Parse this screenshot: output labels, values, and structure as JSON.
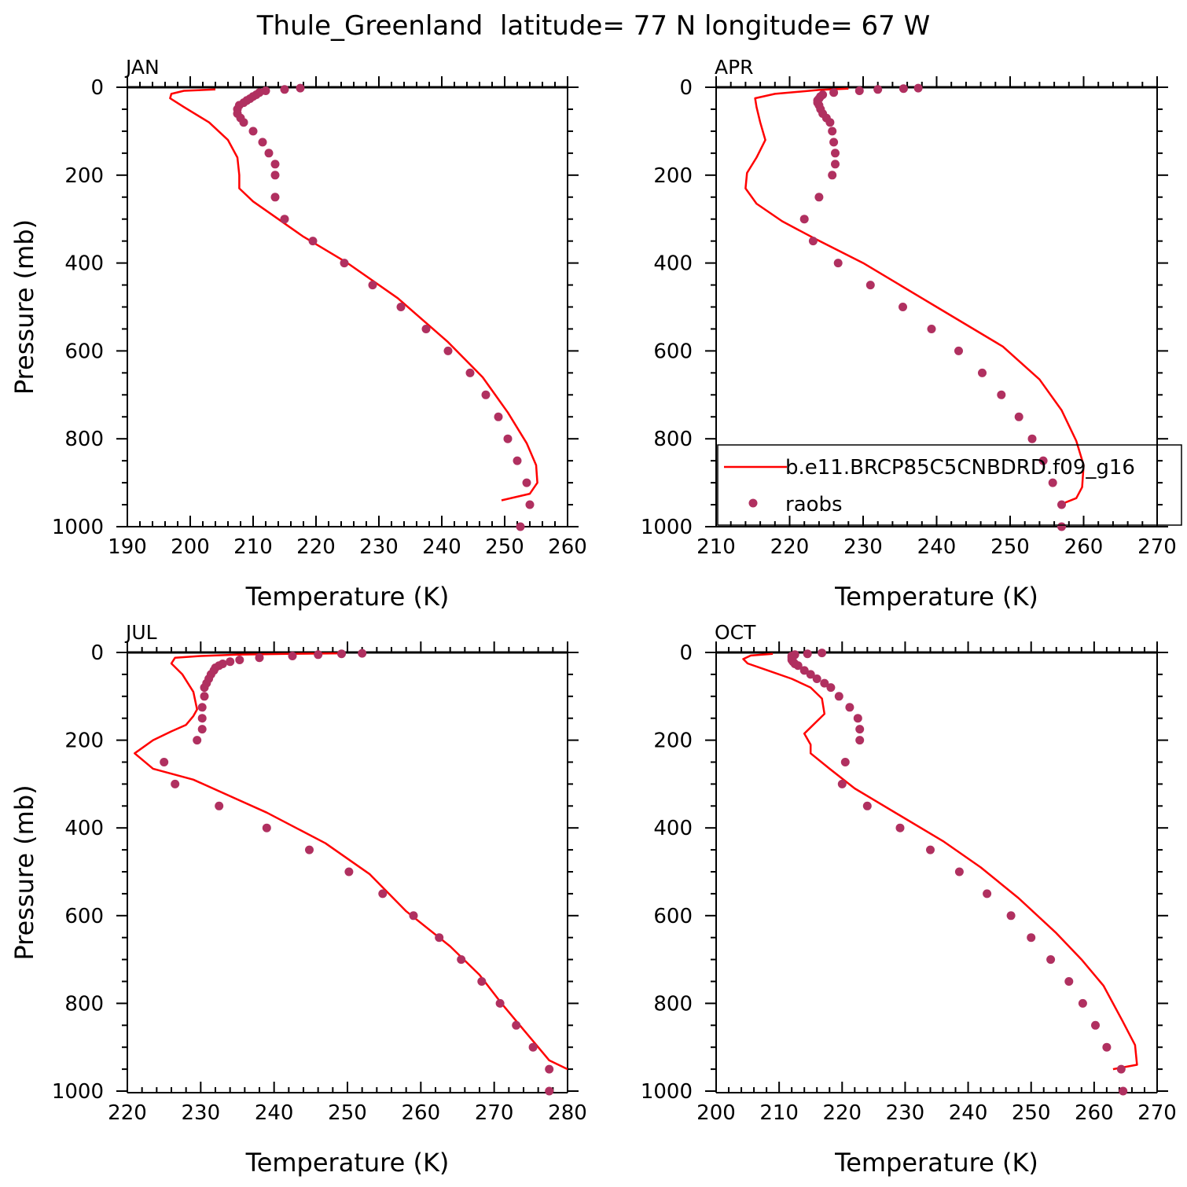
{
  "title": "Thule_Greenland  latitude= 77 N longitude= 67 W",
  "colors": {
    "model": "#ff0000",
    "obs": "#b03060",
    "axis": "#000000"
  },
  "chart_data": [
    {
      "type": "line",
      "panel": "JAN",
      "xlabel": "Temperature (K)",
      "ylabel": "Pressure (mb)",
      "xlim": [
        190,
        260
      ],
      "ylim": [
        1025,
        0
      ],
      "xticks": [
        190,
        200,
        210,
        220,
        230,
        240,
        250,
        260
      ],
      "yticks": [
        0,
        200,
        400,
        600,
        800,
        1000
      ],
      "legend": null,
      "series": [
        {
          "role": "model",
          "style": "line",
          "points": [
            [
              204,
              5
            ],
            [
              199,
              8
            ],
            [
              197,
              15
            ],
            [
              196.8,
              25
            ],
            [
              199,
              45
            ],
            [
              203,
              80
            ],
            [
              206,
              120
            ],
            [
              207.5,
              160
            ],
            [
              207.8,
              200
            ],
            [
              207.8,
              230
            ],
            [
              210,
              260
            ],
            [
              214,
              300
            ],
            [
              218,
              340
            ],
            [
              225,
              400
            ],
            [
              233,
              480
            ],
            [
              241,
              580
            ],
            [
              246.5,
              660
            ],
            [
              250.5,
              740
            ],
            [
              253.5,
              810
            ],
            [
              255,
              860
            ],
            [
              255.2,
              900
            ],
            [
              254,
              925
            ],
            [
              249.5,
              940
            ]
          ]
        },
        {
          "role": "obs",
          "style": "scatter",
          "points": [
            [
              217.5,
              2
            ],
            [
              215,
              5
            ],
            [
              212,
              8
            ],
            [
              211,
              12
            ],
            [
              210.5,
              17
            ],
            [
              210,
              21
            ],
            [
              209.5,
              26
            ],
            [
              209,
              30
            ],
            [
              208.5,
              35
            ],
            [
              207.8,
              41
            ],
            [
              207.5,
              50
            ],
            [
              207.5,
              60
            ],
            [
              208,
              70
            ],
            [
              208.5,
              80
            ],
            [
              210,
              100
            ],
            [
              211.5,
              125
            ],
            [
              212.5,
              150
            ],
            [
              213.5,
              175
            ],
            [
              213.5,
              200
            ],
            [
              213.5,
              250
            ],
            [
              215,
              300
            ],
            [
              219.5,
              350
            ],
            [
              224.5,
              400
            ],
            [
              229,
              450
            ],
            [
              233.5,
              500
            ],
            [
              237.5,
              550
            ],
            [
              241,
              600
            ],
            [
              244.5,
              650
            ],
            [
              247,
              700
            ],
            [
              249,
              750
            ],
            [
              250.5,
              800
            ],
            [
              252,
              850
            ],
            [
              253.5,
              900
            ],
            [
              254,
              950
            ],
            [
              252.5,
              1000
            ]
          ]
        }
      ]
    },
    {
      "type": "line",
      "panel": "APR",
      "xlabel": "Temperature (K)",
      "ylabel": "",
      "xlim": [
        210,
        270
      ],
      "ylim": [
        1025,
        0
      ],
      "xticks": [
        210,
        220,
        230,
        240,
        250,
        260,
        270
      ],
      "yticks": [
        0,
        200,
        400,
        600,
        800,
        1000
      ],
      "legend": {
        "position": "lower-right",
        "entries": [
          {
            "label": "b.e11.BRCP85C5CNBDRD.f09_g16",
            "style": "line"
          },
          {
            "label": "raobs",
            "style": "scatter"
          }
        ]
      },
      "series": [
        {
          "name": "b.e11.BRCP85C5CNBDRD.f09_g16",
          "role": "model",
          "style": "line",
          "points": [
            [
              228,
              3
            ],
            [
              224,
              6
            ],
            [
              218,
              15
            ],
            [
              215.3,
              25
            ],
            [
              215.5,
              45
            ],
            [
              216,
              80
            ],
            [
              216.7,
              120
            ],
            [
              215.5,
              160
            ],
            [
              214.2,
              195
            ],
            [
              214,
              230
            ],
            [
              215.5,
              265
            ],
            [
              219,
              305
            ],
            [
              223.5,
              345
            ],
            [
              230,
              400
            ],
            [
              240,
              500
            ],
            [
              249,
              590
            ],
            [
              254,
              665
            ],
            [
              257,
              735
            ],
            [
              259,
              805
            ],
            [
              260,
              860
            ],
            [
              259.8,
              910
            ],
            [
              259,
              935
            ],
            [
              257.5,
              945
            ]
          ]
        },
        {
          "name": "raobs",
          "role": "obs",
          "style": "scatter",
          "points": [
            [
              237.5,
              2
            ],
            [
              235.5,
              3
            ],
            [
              232,
              5
            ],
            [
              229.5,
              8
            ],
            [
              226,
              12
            ],
            [
              224.5,
              17
            ],
            [
              224.2,
              21
            ],
            [
              224,
              26
            ],
            [
              223.8,
              30
            ],
            [
              223.8,
              35
            ],
            [
              224,
              41
            ],
            [
              224.2,
              50
            ],
            [
              224.5,
              60
            ],
            [
              225,
              70
            ],
            [
              225.5,
              80
            ],
            [
              225.8,
              100
            ],
            [
              226,
              125
            ],
            [
              226.2,
              150
            ],
            [
              226.2,
              175
            ],
            [
              225.8,
              200
            ],
            [
              224,
              250
            ],
            [
              222,
              300
            ],
            [
              223.2,
              350
            ],
            [
              226.6,
              400
            ],
            [
              231,
              450
            ],
            [
              235.4,
              500
            ],
            [
              239.3,
              550
            ],
            [
              243,
              600
            ],
            [
              246.2,
              650
            ],
            [
              248.8,
              700
            ],
            [
              251.2,
              750
            ],
            [
              253,
              800
            ],
            [
              254.5,
              850
            ],
            [
              255.8,
              900
            ],
            [
              257,
              950
            ],
            [
              257,
              1000
            ]
          ]
        }
      ]
    },
    {
      "type": "line",
      "panel": "JUL",
      "xlabel": "Temperature (K)",
      "ylabel": "Pressure (mb)",
      "xlim": [
        220,
        280
      ],
      "ylim": [
        1025,
        0
      ],
      "xticks": [
        220,
        230,
        240,
        250,
        260,
        270,
        280
      ],
      "yticks": [
        0,
        200,
        400,
        600,
        800,
        1000
      ],
      "legend": null,
      "series": [
        {
          "role": "model",
          "style": "line",
          "points": [
            [
              249,
              2
            ],
            [
              242,
              3
            ],
            [
              235,
              5
            ],
            [
              230,
              8
            ],
            [
              226.5,
              12
            ],
            [
              226,
              25
            ],
            [
              227.5,
              50
            ],
            [
              229,
              90
            ],
            [
              229.5,
              130
            ],
            [
              229,
              145
            ],
            [
              228,
              165
            ],
            [
              226,
              180
            ],
            [
              223.5,
              200
            ],
            [
              221,
              230
            ],
            [
              223.5,
              265
            ],
            [
              229,
              290
            ],
            [
              239,
              365
            ],
            [
              247,
              435
            ],
            [
              253,
              505
            ],
            [
              258,
              590
            ],
            [
              264,
              670
            ],
            [
              268,
              735
            ],
            [
              271,
              800
            ],
            [
              274,
              860
            ],
            [
              276,
              900
            ],
            [
              277.5,
              930
            ],
            [
              280,
              950
            ]
          ]
        },
        {
          "role": "obs",
          "style": "scatter",
          "points": [
            [
              252,
              2
            ],
            [
              249.2,
              3
            ],
            [
              246,
              5
            ],
            [
              242.5,
              8
            ],
            [
              238,
              12
            ],
            [
              235.3,
              17
            ],
            [
              234,
              21
            ],
            [
              233,
              26
            ],
            [
              232.5,
              30
            ],
            [
              232,
              35
            ],
            [
              231.8,
              41
            ],
            [
              231.4,
              50
            ],
            [
              231.1,
              60
            ],
            [
              230.8,
              70
            ],
            [
              230.5,
              80
            ],
            [
              230.5,
              100
            ],
            [
              230.2,
              125
            ],
            [
              230.2,
              150
            ],
            [
              230.2,
              175
            ],
            [
              229.5,
              200
            ],
            [
              225,
              250
            ],
            [
              226.5,
              300
            ],
            [
              232.5,
              350
            ],
            [
              239,
              400
            ],
            [
              244.8,
              450
            ],
            [
              250.2,
              500
            ],
            [
              254.8,
              550
            ],
            [
              259,
              600
            ],
            [
              262.5,
              650
            ],
            [
              265.5,
              700
            ],
            [
              268.3,
              750
            ],
            [
              270.8,
              800
            ],
            [
              273,
              850
            ],
            [
              275.3,
              900
            ],
            [
              277.5,
              950
            ],
            [
              277.5,
              1000
            ]
          ]
        }
      ]
    },
    {
      "type": "line",
      "panel": "OCT",
      "xlabel": "Temperature (K)",
      "ylabel": "",
      "xlim": [
        200,
        270
      ],
      "ylim": [
        1025,
        0
      ],
      "xticks": [
        200,
        210,
        220,
        230,
        240,
        250,
        260,
        270
      ],
      "yticks": [
        0,
        200,
        400,
        600,
        800,
        1000
      ],
      "legend": null,
      "series": [
        {
          "role": "model",
          "style": "line",
          "points": [
            [
              209,
              3
            ],
            [
              205.5,
              7
            ],
            [
              204.3,
              15
            ],
            [
              205,
              25
            ],
            [
              208,
              40
            ],
            [
              212,
              60
            ],
            [
              215,
              80
            ],
            [
              216.8,
              105
            ],
            [
              217.2,
              140
            ],
            [
              214,
              185
            ],
            [
              215,
              210
            ],
            [
              215,
              230
            ],
            [
              218,
              265
            ],
            [
              222,
              310
            ],
            [
              229,
              370
            ],
            [
              236,
              430
            ],
            [
              242,
              490
            ],
            [
              248,
              560
            ],
            [
              254,
              640
            ],
            [
              258,
              700
            ],
            [
              261.5,
              760
            ],
            [
              264.5,
              840
            ],
            [
              266.5,
              895
            ],
            [
              266.8,
              940
            ],
            [
              263,
              950
            ]
          ]
        },
        {
          "role": "obs",
          "style": "scatter",
          "points": [
            [
              216.8,
              1
            ],
            [
              214.5,
              3
            ],
            [
              212.5,
              5
            ],
            [
              212,
              8
            ],
            [
              212,
              12
            ],
            [
              212,
              17
            ],
            [
              212.2,
              21
            ],
            [
              212.5,
              26
            ],
            [
              213,
              30
            ],
            [
              214,
              41
            ],
            [
              215,
              50
            ],
            [
              216,
              60
            ],
            [
              217.2,
              70
            ],
            [
              218.2,
              80
            ],
            [
              219.5,
              100
            ],
            [
              221.2,
              125
            ],
            [
              222.5,
              150
            ],
            [
              222.8,
              175
            ],
            [
              222.8,
              200
            ],
            [
              220.5,
              250
            ],
            [
              220,
              300
            ],
            [
              224,
              350
            ],
            [
              229.2,
              400
            ],
            [
              234,
              450
            ],
            [
              238.6,
              500
            ],
            [
              243,
              550
            ],
            [
              246.8,
              600
            ],
            [
              250,
              650
            ],
            [
              253.1,
              700
            ],
            [
              256,
              750
            ],
            [
              258.2,
              800
            ],
            [
              260.2,
              850
            ],
            [
              262,
              900
            ],
            [
              264.3,
              950
            ],
            [
              264.6,
              1000
            ]
          ]
        }
      ]
    }
  ]
}
